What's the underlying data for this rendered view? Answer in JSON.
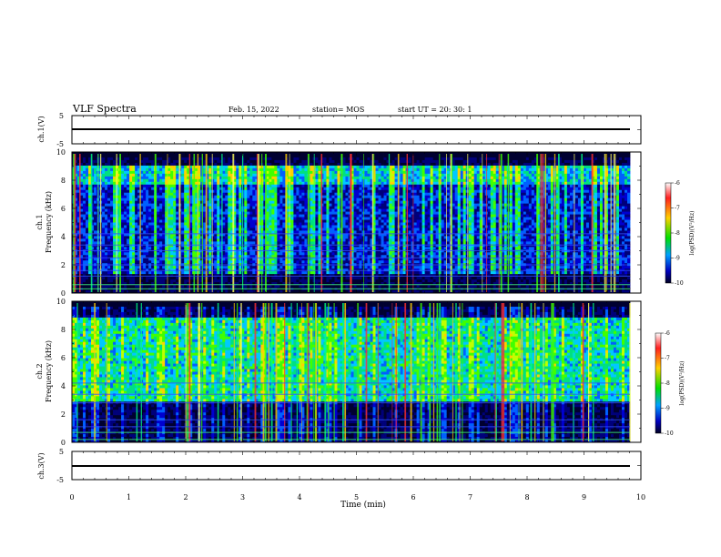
{
  "header": {
    "title": "VLF Spectra",
    "date": "Feb. 15, 2022",
    "station": "station= MOS",
    "start": "start  UT =   20: 30: 1"
  },
  "colorbar": {
    "label": "log(PSD)(V²/Hz)",
    "ticks": [
      "-6",
      "-7",
      "-8",
      "-9",
      "-10"
    ],
    "colors": [
      "#ffffff",
      "#ff2020",
      "#ffd000",
      "#00e000",
      "#00a0ff",
      "#0000c0",
      "#000020"
    ]
  },
  "chart_data": [
    {
      "type": "line",
      "panel": "ch1-waveform",
      "ylabel": "ch.1(V)",
      "ylim": [
        -5,
        5
      ],
      "y_tick_labels": [
        "5",
        "-5"
      ],
      "xlim": [
        0,
        10
      ],
      "series": [
        {
          "values_approx": -0.5
        }
      ]
    },
    {
      "type": "heatmap",
      "panel": "ch1-spectrogram",
      "ylabel": "ch.1\nFrequency (kHz)",
      "ylim": [
        0,
        10
      ],
      "y_tick_labels": [
        "0",
        "2",
        "4",
        "6",
        "8",
        "10"
      ],
      "xlim": [
        0,
        9.8
      ],
      "zlim": [
        -10,
        -6
      ]
    },
    {
      "type": "heatmap",
      "panel": "ch2-spectrogram",
      "ylabel": "ch.2\nFrequency (kHz)",
      "ylim": [
        0,
        10
      ],
      "y_tick_labels": [
        "0",
        "2",
        "4",
        "6",
        "8",
        "10"
      ],
      "xlim": [
        0,
        9.8
      ],
      "zlim": [
        -10,
        -6
      ]
    },
    {
      "type": "line",
      "panel": "ch3-waveform",
      "ylabel": "ch.3(V)",
      "ylim": [
        -5,
        5
      ],
      "y_tick_labels": [
        "5",
        "-5"
      ],
      "xlim": [
        0,
        10
      ],
      "series": [
        {
          "values_approx": -0.5
        }
      ]
    }
  ],
  "xaxis": {
    "label": "Time (min)",
    "ticks": [
      "0",
      "1",
      "2",
      "3",
      "4",
      "5",
      "6",
      "7",
      "8",
      "9",
      "10"
    ],
    "range": [
      0,
      10
    ]
  }
}
